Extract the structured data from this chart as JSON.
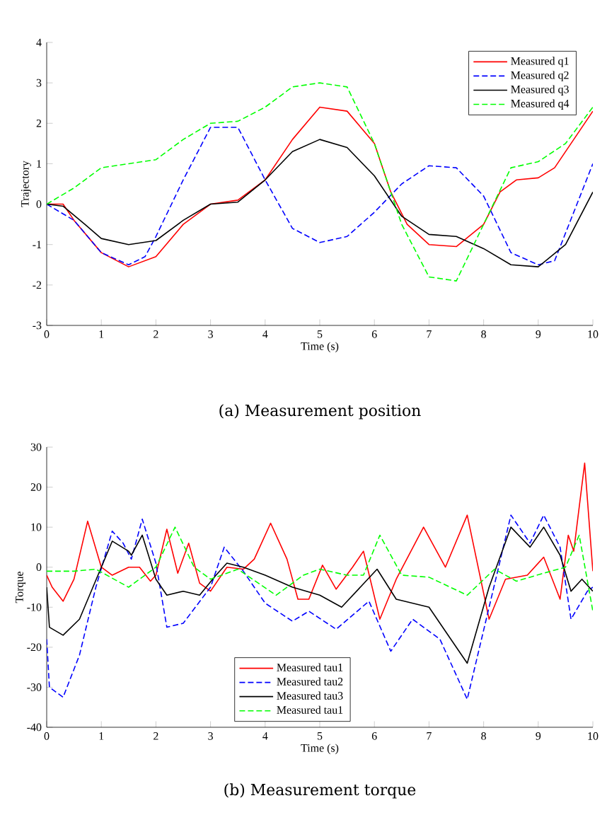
{
  "chart_data": [
    {
      "type": "line",
      "title": "(a) Measurement position",
      "xlabel": "Time (s)",
      "ylabel": "Trajectory",
      "xlim": [
        0,
        10
      ],
      "ylim": [
        -3,
        4
      ],
      "xticks": [
        0,
        1,
        2,
        3,
        4,
        5,
        6,
        7,
        8,
        9,
        10
      ],
      "yticks": [
        -3,
        -2,
        -1,
        0,
        1,
        2,
        3,
        4
      ],
      "legend": "top right",
      "marker": "none",
      "series": [
        {
          "name": "Measured q1",
          "color": "#ff0000",
          "line_style": "solid",
          "x": [
            0,
            0.3,
            0.5,
            1,
            1.5,
            2,
            2.5,
            3,
            3.5,
            4,
            4.5,
            5,
            5.5,
            6,
            6.3,
            6.6,
            7,
            7.5,
            8,
            8.3,
            8.6,
            9,
            9.3,
            10
          ],
          "values": [
            0,
            0,
            -0.4,
            -1.2,
            -1.55,
            -1.3,
            -0.5,
            0,
            0.1,
            0.6,
            1.6,
            2.4,
            2.3,
            1.5,
            0.3,
            -0.5,
            -1.0,
            -1.05,
            -0.5,
            0.3,
            0.6,
            0.65,
            0.9,
            2.3
          ]
        },
        {
          "name": "Measured q2",
          "color": "#0000ff",
          "line_style": "dashed",
          "x": [
            0,
            0.5,
            1,
            1.5,
            1.8,
            2,
            2.5,
            3,
            3.5,
            4,
            4.5,
            5,
            5.5,
            6,
            6.5,
            7,
            7.5,
            8,
            8.5,
            9,
            9.3,
            10
          ],
          "values": [
            0,
            -0.4,
            -1.2,
            -1.5,
            -1.3,
            -0.8,
            0.6,
            1.9,
            1.9,
            0.6,
            -0.6,
            -0.95,
            -0.8,
            -0.2,
            0.5,
            0.95,
            0.9,
            0.2,
            -1.2,
            -1.5,
            -1.4,
            1.0
          ]
        },
        {
          "name": "Measured q3",
          "color": "#000000",
          "line_style": "solid",
          "x": [
            0,
            0.3,
            0.7,
            1,
            1.5,
            2,
            2.5,
            3,
            3.5,
            4,
            4.5,
            5,
            5.5,
            6,
            6.5,
            7,
            7.5,
            8,
            8.5,
            9,
            9.5,
            10
          ],
          "values": [
            0,
            -0.05,
            -0.5,
            -0.85,
            -1.0,
            -0.9,
            -0.4,
            0,
            0.05,
            0.6,
            1.3,
            1.6,
            1.4,
            0.7,
            -0.3,
            -0.75,
            -0.8,
            -1.1,
            -1.5,
            -1.55,
            -1.0,
            0.3
          ]
        },
        {
          "name": "Measured q4",
          "color": "#00ff00",
          "line_style": "dashed",
          "x": [
            0,
            0.5,
            1,
            1.5,
            2,
            2.5,
            3,
            3.5,
            4,
            4.5,
            5,
            5.5,
            6,
            6.5,
            7,
            7.5,
            8,
            8.5,
            9,
            9.5,
            10
          ],
          "values": [
            0,
            0.4,
            0.9,
            1.0,
            1.1,
            1.6,
            2.0,
            2.05,
            2.4,
            2.9,
            3.0,
            2.9,
            1.5,
            -0.5,
            -1.8,
            -1.9,
            -0.5,
            0.9,
            1.05,
            1.5,
            2.4
          ]
        }
      ]
    },
    {
      "type": "line",
      "title": "(b) Measurement torque",
      "xlabel": "Time (s)",
      "ylabel": "Torque",
      "xlim": [
        0,
        10
      ],
      "ylim": [
        -40,
        30
      ],
      "xticks": [
        0,
        1,
        2,
        3,
        4,
        5,
        6,
        7,
        8,
        9,
        10
      ],
      "yticks": [
        -40,
        -30,
        -20,
        -10,
        0,
        10,
        20,
        30
      ],
      "legend": "bottom",
      "marker": "none",
      "series": [
        {
          "name": "Measured tau1",
          "color": "#ff0000",
          "line_style": "solid",
          "x": [
            0,
            0.1,
            0.3,
            0.5,
            0.75,
            1,
            1.2,
            1.5,
            1.7,
            1.9,
            2,
            2.2,
            2.4,
            2.6,
            2.8,
            3,
            3.3,
            3.6,
            3.8,
            4.1,
            4.4,
            4.6,
            4.8,
            5.05,
            5.3,
            5.6,
            5.8,
            6.1,
            6.4,
            6.9,
            7.3,
            7.7,
            8.1,
            8.4,
            8.8,
            9.1,
            9.4,
            9.55,
            9.65,
            9.85,
            10
          ],
          "values": [
            -2,
            -5,
            -8.5,
            -3,
            11.5,
            0,
            -2,
            0,
            0,
            -3.5,
            -2,
            9.5,
            -1.5,
            6,
            -4,
            -6,
            0,
            -0.5,
            2,
            11,
            2,
            -8,
            -8,
            0.5,
            -5.5,
            0,
            4,
            -13,
            -3,
            10,
            0,
            13,
            -13,
            -3,
            -2,
            2.5,
            -8,
            8,
            4,
            26,
            -1
          ]
        },
        {
          "name": "Measured tau2",
          "color": "#0000ff",
          "line_style": "dashed",
          "x": [
            0,
            0.05,
            0.3,
            0.6,
            0.9,
            1.2,
            1.4,
            1.55,
            1.75,
            2,
            2.2,
            2.5,
            3,
            3.25,
            3.6,
            4,
            4.5,
            4.8,
            5.3,
            5.9,
            6.3,
            6.7,
            7.2,
            7.7,
            8.1,
            8.5,
            8.85,
            9.1,
            9.4,
            9.6,
            9.9,
            10
          ],
          "values": [
            -18,
            -30,
            -32.5,
            -22,
            -5,
            9,
            6,
            2,
            12,
            1,
            -15,
            -14,
            -5,
            5,
            -1,
            -9,
            -13.5,
            -11,
            -15.5,
            -8.5,
            -21,
            -13,
            -18,
            -33,
            -10,
            13,
            6,
            13,
            5,
            -13,
            -6,
            -5
          ]
        },
        {
          "name": "Measured tau3",
          "color": "#000000",
          "line_style": "solid",
          "x": [
            0,
            0.05,
            0.3,
            0.6,
            1,
            1.2,
            1.5,
            1.55,
            1.75,
            2,
            2.2,
            2.5,
            2.8,
            3.1,
            3.3,
            3.6,
            4,
            4.5,
            5,
            5.4,
            6.05,
            6.4,
            7,
            7.7,
            8.1,
            8.5,
            8.85,
            9.1,
            9.4,
            9.6,
            9.8,
            10
          ],
          "values": [
            -5,
            -15,
            -17,
            -13,
            0,
            6.5,
            4,
            3,
            8,
            -3,
            -7,
            -6,
            -7,
            -2,
            1,
            0,
            -2,
            -5,
            -7,
            -10,
            -0.5,
            -8,
            -10,
            -24,
            -5,
            10,
            5,
            10,
            3,
            -6,
            -3,
            -6
          ]
        },
        {
          "name": "Measured tau1",
          "color": "#00ff00",
          "line_style": "dashed",
          "x": [
            0,
            0.5,
            0.9,
            1.5,
            2,
            2.35,
            2.7,
            3,
            3.5,
            4.2,
            4.7,
            5,
            5.5,
            5.8,
            6.1,
            6.5,
            7,
            7.7,
            8.2,
            8.6,
            9.1,
            9.5,
            9.75,
            10
          ],
          "values": [
            -1,
            -1,
            -0.5,
            -5,
            0,
            10,
            0,
            -3,
            -0.5,
            -7,
            -2,
            -0.5,
            -2,
            -2,
            8,
            -2,
            -2.5,
            -7,
            -0.5,
            -3.5,
            -1.5,
            0,
            8,
            -11
          ]
        }
      ]
    }
  ]
}
